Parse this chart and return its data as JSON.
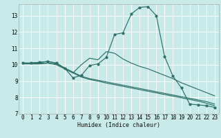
{
  "xlabel": "Humidex (Indice chaleur)",
  "bg_color": "#c8eae8",
  "line_color": "#2d7068",
  "grid_color": "#b0d8d4",
  "xlim": [
    0,
    23
  ],
  "ylim": [
    7.0,
    13.7
  ],
  "yticks": [
    7,
    8,
    9,
    10,
    11,
    12,
    13
  ],
  "xticks": [
    0,
    1,
    2,
    3,
    4,
    5,
    6,
    7,
    8,
    9,
    10,
    11,
    12,
    13,
    14,
    15,
    16,
    17,
    18,
    19,
    20,
    21,
    22,
    23
  ],
  "lines": [
    {
      "x": [
        0,
        1,
        2,
        3,
        4,
        5,
        6,
        7,
        8,
        9,
        10,
        11,
        12,
        13,
        14,
        15,
        16,
        17,
        18,
        19,
        20,
        21,
        22,
        23
      ],
      "y": [
        10.1,
        10.1,
        10.15,
        10.2,
        10.1,
        9.8,
        9.2,
        9.35,
        9.95,
        10.05,
        10.45,
        11.85,
        11.95,
        13.1,
        13.5,
        13.55,
        13.0,
        10.5,
        9.3,
        8.6,
        7.6,
        7.55,
        7.5,
        7.4
      ],
      "marker": true
    },
    {
      "x": [
        0,
        1,
        2,
        3,
        4,
        5,
        6,
        7,
        8,
        9,
        10,
        11,
        12,
        13,
        14,
        15,
        16,
        17,
        18,
        19,
        20,
        21,
        22,
        23
      ],
      "y": [
        10.1,
        10.1,
        10.15,
        10.2,
        10.1,
        9.8,
        9.5,
        10.0,
        10.4,
        10.3,
        10.8,
        10.7,
        10.35,
        10.1,
        9.9,
        9.75,
        9.55,
        9.35,
        9.15,
        8.9,
        8.7,
        8.5,
        8.3,
        8.1
      ],
      "marker": false
    },
    {
      "x": [
        0,
        1,
        2,
        3,
        4,
        5,
        6,
        7,
        8,
        9,
        10,
        11,
        12,
        13,
        14,
        15,
        16,
        17,
        18,
        19,
        20,
        21,
        22,
        23
      ],
      "y": [
        10.1,
        10.1,
        10.1,
        10.1,
        10.05,
        9.8,
        9.55,
        9.3,
        9.15,
        9.05,
        8.95,
        8.85,
        8.75,
        8.65,
        8.55,
        8.45,
        8.35,
        8.25,
        8.15,
        8.05,
        7.95,
        7.85,
        7.75,
        7.6
      ],
      "marker": false
    },
    {
      "x": [
        0,
        1,
        2,
        3,
        4,
        5,
        6,
        7,
        8,
        9,
        10,
        11,
        12,
        13,
        14,
        15,
        16,
        17,
        18,
        19,
        20,
        21,
        22,
        23
      ],
      "y": [
        10.05,
        10.05,
        10.05,
        10.1,
        10.0,
        9.75,
        9.5,
        9.25,
        9.1,
        9.0,
        8.88,
        8.78,
        8.68,
        8.58,
        8.48,
        8.38,
        8.28,
        8.18,
        8.08,
        7.98,
        7.88,
        7.78,
        7.65,
        7.5
      ],
      "marker": false
    }
  ]
}
